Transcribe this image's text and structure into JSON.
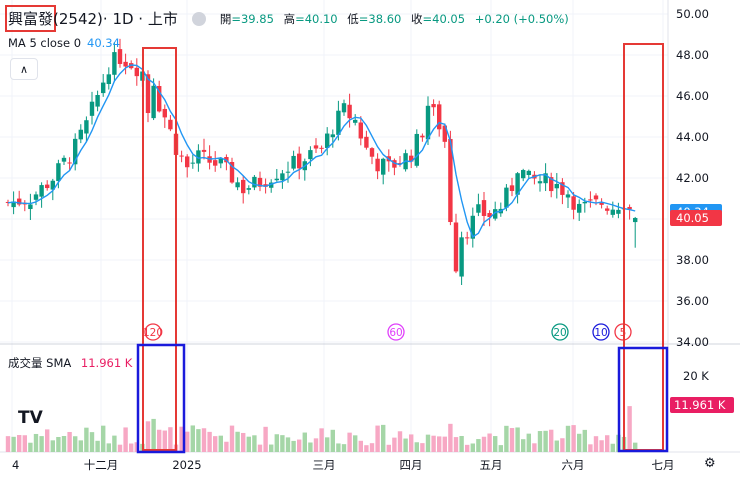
{
  "legend": {
    "symbol": "興富發",
    "code": "(2542)",
    "meta": " · 1D · 上市",
    "ohlc": [
      {
        "label": "開",
        "value": "=39.85"
      },
      {
        "label": "高",
        "value": "=40.10"
      },
      {
        "label": "低",
        "value": "=38.60"
      },
      {
        "label": "收",
        "value": "=40.05"
      },
      {
        "label": "",
        "value": "+0.20 (+0.50%)"
      }
    ],
    "ma": "MA 5 close 0",
    "ma_value": "40.34"
  },
  "volume_legend": {
    "label": "成交量 SMA",
    "value": "11.961 K"
  },
  "logo": "TV",
  "colors": {
    "up": "#089981",
    "down": "#f23645",
    "ma": "#2196f3",
    "vol_up": "#a5d6a7",
    "vol_down": "#f7a8c4",
    "highlight_red": "#e53935",
    "highlight_blue": "#1a1adb"
  },
  "chart_data": {
    "type": "candlestick",
    "price_axis": {
      "ticks": [
        "50.00",
        "48.00",
        "46.00",
        "44.00",
        "42.00",
        "40.00",
        "38.00",
        "36.00",
        "34.00"
      ],
      "range": [
        34,
        50
      ]
    },
    "volume_axis": {
      "ticks": [
        "20 K"
      ]
    },
    "time_axis": [
      "4",
      "十二月",
      "2025",
      "三月",
      "四月",
      "五月",
      "六月",
      "七月"
    ],
    "price_badges": [
      {
        "value": "40.34",
        "color": "#2196f3"
      },
      {
        "value": "40.05",
        "color": "#f23645"
      }
    ],
    "volume_badge": {
      "value": "11.961 K",
      "color": "#e91e63"
    },
    "event_markers": [
      {
        "label": "120",
        "color": "#f23645"
      },
      {
        "label": "60",
        "color": "#e040fb"
      },
      {
        "label": "20",
        "color": "#089981"
      },
      {
        "label": "10",
        "color": "#1a1adb"
      },
      {
        "label": "5",
        "color": "#f23645"
      }
    ],
    "anchors": [
      [
        0,
        40.8
      ],
      [
        4,
        41.0
      ],
      [
        8,
        42.0
      ],
      [
        12,
        43.5
      ],
      [
        14,
        44.6
      ],
      [
        16,
        46.0
      ],
      [
        18,
        47.5
      ],
      [
        20,
        47.9
      ],
      [
        22,
        47.6
      ],
      [
        24,
        47.2
      ],
      [
        26,
        46.2
      ],
      [
        28,
        45.0
      ],
      [
        30,
        43.5
      ],
      [
        32,
        42.5
      ],
      [
        34,
        43.0
      ],
      [
        38,
        42.6
      ],
      [
        42,
        41.5
      ],
      [
        45,
        41.8
      ],
      [
        48,
        42.3
      ],
      [
        52,
        42.8
      ],
      [
        56,
        43.4
      ],
      [
        58,
        44.5
      ],
      [
        60,
        45.3
      ],
      [
        62,
        44.8
      ],
      [
        64,
        43.4
      ],
      [
        66,
        42.7
      ],
      [
        68,
        42.5
      ],
      [
        72,
        43.2
      ],
      [
        74,
        44.3
      ],
      [
        75,
        45.6
      ],
      [
        77,
        44.6
      ],
      [
        78,
        43.8
      ],
      [
        79,
        40.7
      ],
      [
        80,
        37.8
      ],
      [
        81,
        38.4
      ],
      [
        82,
        39.5
      ],
      [
        84,
        40.3
      ],
      [
        86,
        40.2
      ],
      [
        88,
        40.6
      ],
      [
        90,
        41.6
      ],
      [
        91,
        42.6
      ],
      [
        93,
        41.9
      ],
      [
        97,
        41.8
      ],
      [
        100,
        41.3
      ],
      [
        102,
        40.5
      ],
      [
        104,
        40.6
      ],
      [
        106,
        40.8
      ],
      [
        108,
        40.6
      ],
      [
        110,
        40.9
      ],
      [
        112,
        40.05
      ]
    ],
    "events": [
      {
        "index": 25,
        "volume_spike": 3.2,
        "close_shift": -1.4
      },
      {
        "index": 26,
        "volume_spike": 2.2,
        "close_shift": 0.6
      },
      {
        "index": 79,
        "volume_spike": 1.3,
        "close_shift": -0.6
      },
      {
        "index": 81,
        "volume_spike": 1.2,
        "close_shift": 0.9
      },
      {
        "index": 111,
        "volume_spike": 2.6,
        "close_shift": 0.0
      }
    ]
  }
}
